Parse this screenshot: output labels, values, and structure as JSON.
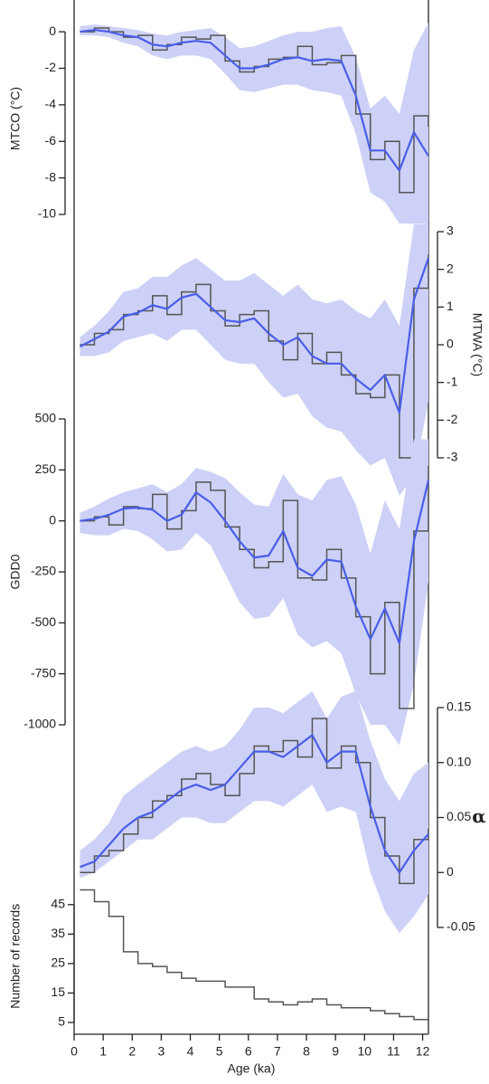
{
  "chart_data": [
    {
      "type": "line",
      "y_label": "MTCO (°C)",
      "y_axis_side": "left",
      "x": [
        0.2,
        0.7,
        1.2,
        1.7,
        2.2,
        2.7,
        3.2,
        3.7,
        4.2,
        4.7,
        5.2,
        5.7,
        6.2,
        6.7,
        7.2,
        7.7,
        8.2,
        8.7,
        9.2,
        9.7,
        10.2,
        10.7,
        11.2,
        11.7,
        12.2
      ],
      "xlim": [
        0,
        12.2
      ],
      "ylim": [
        -10,
        0.5
      ],
      "yticks": [
        0,
        -2,
        -4,
        -6,
        -8,
        -10
      ],
      "steps": {
        "color": "#555555",
        "values": [
          0,
          0.2,
          0,
          -0.3,
          -0.2,
          -1.0,
          -0.7,
          -0.3,
          -0.4,
          -0.2,
          -1.6,
          -2.2,
          -1.9,
          -1.5,
          -1.4,
          -0.8,
          -1.8,
          -1.7,
          -1.3,
          -4.5,
          -7.0,
          -6.0,
          -8.8,
          -4.6,
          -5.2
        ]
      },
      "smooth": {
        "color": "#4a5ee8",
        "values": [
          0,
          0.1,
          0,
          -0.2,
          -0.3,
          -0.7,
          -0.8,
          -0.6,
          -0.5,
          -0.6,
          -1.3,
          -2.0,
          -2.0,
          -1.8,
          -1.5,
          -1.4,
          -1.6,
          -1.5,
          -1.6,
          -3.5,
          -6.5,
          -6.5,
          -7.6,
          -5.5,
          -6.8
        ]
      },
      "band": {
        "color": "#cdd1f7",
        "lower": [
          -0.2,
          -0.2,
          -0.3,
          -0.6,
          -0.8,
          -1.3,
          -1.5,
          -1.3,
          -1.3,
          -1.5,
          -2.3,
          -3.2,
          -3.3,
          -3.1,
          -2.9,
          -2.9,
          -3.2,
          -3.3,
          -3.5,
          -5.6,
          -8.8,
          -9.3,
          -10.5,
          -10.5,
          -10.5
        ],
        "upper": [
          0.3,
          0.4,
          0.3,
          0.2,
          0.1,
          -0.1,
          -0.2,
          0,
          0.1,
          0.2,
          -0.3,
          -0.9,
          -0.8,
          -0.5,
          -0.2,
          0,
          0,
          0.2,
          0.3,
          -1.4,
          -4.2,
          -3.5,
          -4.5,
          -1.0,
          0.5
        ]
      }
    },
    {
      "type": "line",
      "y_label": "MTWA (°C)",
      "y_axis_side": "right",
      "x": [
        0.2,
        0.7,
        1.2,
        1.7,
        2.2,
        2.7,
        3.2,
        3.7,
        4.2,
        4.7,
        5.2,
        5.7,
        6.2,
        6.7,
        7.2,
        7.7,
        8.2,
        8.7,
        9.2,
        9.7,
        10.2,
        10.7,
        11.2,
        11.7,
        12.2
      ],
      "xlim": [
        0,
        12.2
      ],
      "ylim": [
        -3,
        3
      ],
      "yticks": [
        3,
        2,
        1,
        0,
        -1,
        -2,
        -3
      ],
      "steps": {
        "color": "#555555",
        "values": [
          0,
          0.3,
          0.4,
          0.8,
          0.9,
          1.3,
          0.8,
          1.4,
          1.6,
          0.9,
          0.5,
          0.8,
          0.9,
          0.1,
          -0.4,
          0.3,
          -0.5,
          -0.2,
          -0.8,
          -1.3,
          -1.4,
          -0.8,
          -3.0,
          1.5,
          2.4
        ]
      },
      "smooth": {
        "color": "#4a5ee8",
        "values": [
          -0.05,
          0.15,
          0.35,
          0.75,
          0.85,
          1.05,
          0.95,
          1.25,
          1.35,
          1.0,
          0.65,
          0.6,
          0.7,
          0.3,
          0.0,
          0.2,
          -0.3,
          -0.5,
          -0.5,
          -0.9,
          -1.2,
          -0.8,
          -1.8,
          1.2,
          2.3
        ]
      },
      "band": {
        "color": "#cdd1f7",
        "lower": [
          -0.3,
          -0.3,
          -0.2,
          0.1,
          0.2,
          0.3,
          0.1,
          0.4,
          0.4,
          0,
          -0.4,
          -0.5,
          -0.5,
          -1.0,
          -1.4,
          -1.3,
          -1.9,
          -2.2,
          -2.3,
          -2.8,
          -3.2,
          -3.0,
          -4.0,
          -3.5,
          -1.5
        ],
        "upper": [
          0.2,
          0.5,
          0.9,
          1.4,
          1.5,
          1.8,
          1.8,
          2.1,
          2.3,
          2.0,
          1.7,
          1.7,
          1.9,
          1.6,
          1.3,
          1.6,
          1.2,
          1.1,
          1.2,
          0.9,
          0.7,
          1.2,
          0.5,
          3.2,
          3.2
        ]
      }
    },
    {
      "type": "line",
      "y_label": "GDD0",
      "y_axis_side": "left",
      "x": [
        0.2,
        0.7,
        1.2,
        1.7,
        2.2,
        2.7,
        3.2,
        3.7,
        4.2,
        4.7,
        5.2,
        5.7,
        6.2,
        6.7,
        7.2,
        7.7,
        8.2,
        8.7,
        9.2,
        9.7,
        10.2,
        10.7,
        11.2,
        11.7,
        12.2
      ],
      "xlim": [
        0,
        12.2
      ],
      "ylim": [
        -1000,
        500
      ],
      "yticks": [
        500,
        250,
        0,
        -250,
        -500,
        -750,
        -1000
      ],
      "steps": {
        "color": "#555555",
        "values": [
          0,
          20,
          -20,
          70,
          60,
          130,
          -40,
          50,
          190,
          150,
          -30,
          -140,
          -230,
          -200,
          100,
          -280,
          -290,
          -140,
          -280,
          -470,
          -750,
          -400,
          -920,
          -50,
          270
        ]
      },
      "smooth": {
        "color": "#4a5ee8",
        "values": [
          0,
          10,
          30,
          60,
          65,
          55,
          0,
          30,
          140,
          90,
          0,
          -100,
          -180,
          -170,
          -50,
          -230,
          -270,
          -190,
          -200,
          -420,
          -580,
          -430,
          -600,
          -100,
          200
        ]
      },
      "band": {
        "color": "#cdd1f7",
        "lower": [
          -60,
          -70,
          -70,
          -40,
          -50,
          -90,
          -150,
          -140,
          -60,
          -120,
          -260,
          -400,
          -480,
          -470,
          -380,
          -560,
          -620,
          -590,
          -650,
          -850,
          -1000,
          -1000,
          -1100,
          -800,
          -300
        ],
        "upper": [
          40,
          70,
          110,
          140,
          160,
          180,
          140,
          180,
          260,
          240,
          210,
          140,
          80,
          70,
          230,
          130,
          100,
          200,
          220,
          80,
          -160,
          100,
          -40,
          400,
          400
        ]
      }
    },
    {
      "type": "line",
      "y_label": "α",
      "y_axis_side": "right",
      "x": [
        0.2,
        0.7,
        1.2,
        1.7,
        2.2,
        2.7,
        3.2,
        3.7,
        4.2,
        4.7,
        5.2,
        5.7,
        6.2,
        6.7,
        7.2,
        7.7,
        8.2,
        8.7,
        9.2,
        9.7,
        10.2,
        10.7,
        11.2,
        11.7,
        12.2
      ],
      "xlim": [
        0,
        12.2
      ],
      "ylim": [
        -0.05,
        0.15
      ],
      "yticks": [
        0.15,
        {
          "value": 0.1,
          "label": "0.10"
        },
        0.05,
        0,
        -0.05
      ],
      "steps": {
        "color": "#555555",
        "values": [
          0,
          0.015,
          0.02,
          0.035,
          0.05,
          0.065,
          0.07,
          0.085,
          0.09,
          0.08,
          0.07,
          0.09,
          0.115,
          0.11,
          0.12,
          0.105,
          0.14,
          0.095,
          0.115,
          0.1,
          0.05,
          0.015,
          -0.01,
          0.03,
          0.04
        ]
      },
      "smooth": {
        "color": "#4a5ee8",
        "values": [
          0.005,
          0.01,
          0.025,
          0.04,
          0.05,
          0.055,
          0.065,
          0.075,
          0.08,
          0.075,
          0.08,
          0.095,
          0.11,
          0.11,
          0.105,
          0.115,
          0.125,
          0.1,
          0.11,
          0.11,
          0.06,
          0.02,
          0,
          0.02,
          0.035
        ]
      },
      "band": {
        "color": "#cdd1f7",
        "lower": [
          -0.005,
          0,
          0.01,
          0.02,
          0.03,
          0.03,
          0.04,
          0.05,
          0.05,
          0.045,
          0.045,
          0.055,
          0.065,
          0.065,
          0.06,
          0.07,
          0.08,
          0.055,
          0.06,
          0.055,
          0,
          -0.035,
          -0.055,
          -0.04,
          -0.02
        ],
        "upper": [
          0.02,
          0.03,
          0.045,
          0.07,
          0.08,
          0.09,
          0.1,
          0.11,
          0.115,
          0.11,
          0.115,
          0.13,
          0.15,
          0.15,
          0.145,
          0.155,
          0.165,
          0.14,
          0.16,
          0.165,
          0.12,
          0.085,
          0.065,
          0.09,
          0.1
        ]
      }
    },
    {
      "type": "step",
      "y_label": "Number of records",
      "y_axis_side": "left",
      "x_label": "Age (ka)",
      "x": [
        0.2,
        0.7,
        1.2,
        1.7,
        2.2,
        2.7,
        3.2,
        3.7,
        4.2,
        4.7,
        5.2,
        5.7,
        6.2,
        6.7,
        7.2,
        7.7,
        8.2,
        8.7,
        9.2,
        9.7,
        10.2,
        10.7,
        11.2,
        11.7,
        12.2
      ],
      "xlim": [
        0,
        12.2
      ],
      "xticks": [
        0,
        1,
        2,
        3,
        4,
        5,
        6,
        7,
        8,
        9,
        10,
        11,
        12
      ],
      "ylim": [
        3,
        52
      ],
      "yticks": [
        45,
        35,
        25,
        15,
        5
      ],
      "steps": {
        "color": "#555555",
        "values": [
          50,
          46,
          41,
          29,
          25,
          24,
          22,
          20,
          19,
          19,
          17,
          17,
          13,
          12,
          11,
          12,
          13,
          11,
          10,
          10,
          9,
          8,
          7,
          6,
          5
        ]
      }
    }
  ]
}
